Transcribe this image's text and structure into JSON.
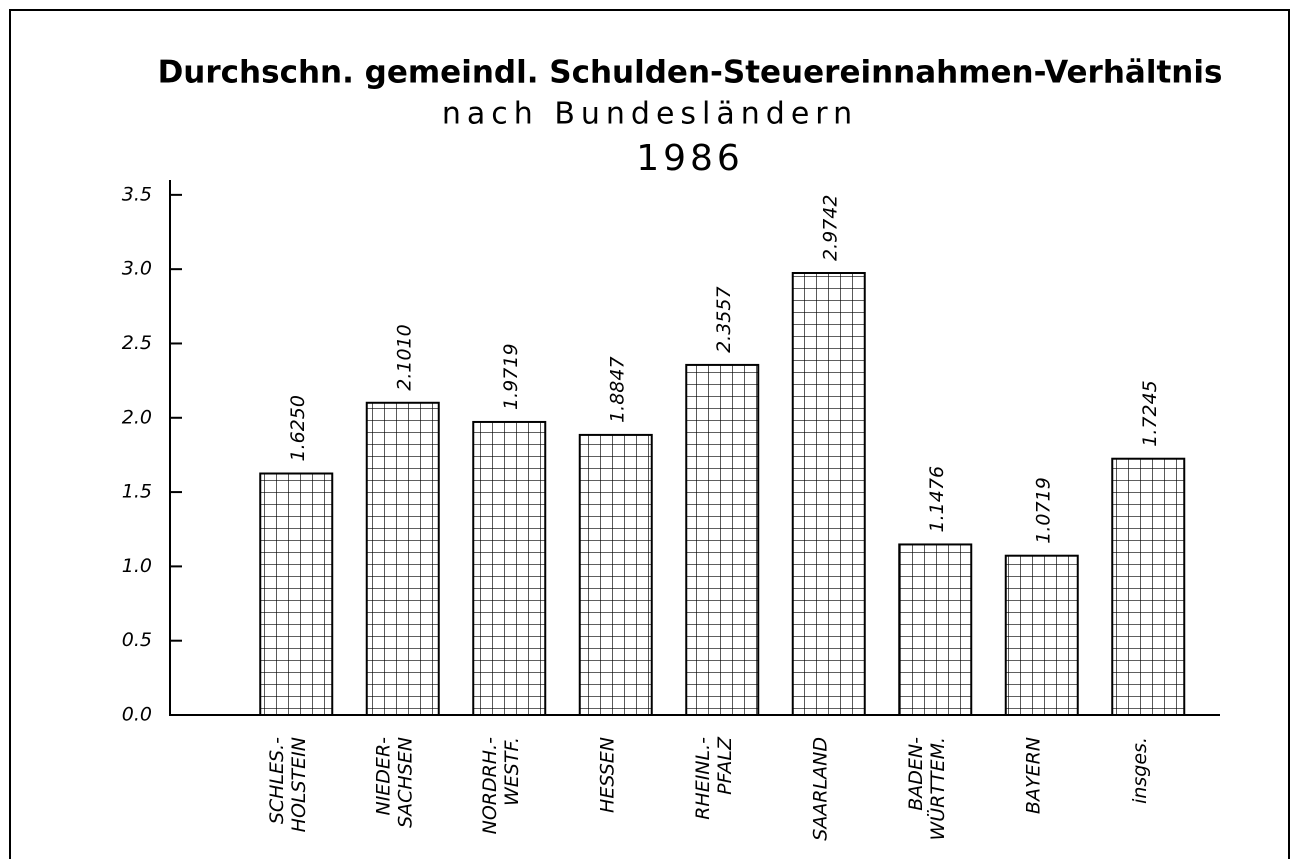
{
  "chart_data": {
    "type": "bar",
    "title": "Durchschn. gemeindl. Schulden-Steuereinnahmen-Verhältnis",
    "subtitle": "nach Bundesländern",
    "annotation": "1986",
    "categories": [
      [
        "SCHLES.-",
        "HOLSTEIN"
      ],
      [
        "NIEDER-",
        "SACHSEN"
      ],
      [
        "NORDRH.-",
        "WESTF."
      ],
      [
        "HESSEN"
      ],
      [
        "RHEINL.-",
        "PFALZ"
      ],
      [
        "SAARLAND"
      ],
      [
        "BADEN-",
        "WÜRTTEM."
      ],
      [
        "BAYERN"
      ],
      [
        "insges."
      ]
    ],
    "values": [
      1.625,
      2.101,
      1.9719,
      1.8847,
      2.3557,
      2.9742,
      1.1476,
      1.0719,
      1.7245
    ],
    "value_labels": [
      "1.6250",
      "2.1010",
      "1.9719",
      "1.8847",
      "2.3557",
      "2.9742",
      "1.1476",
      "1.0719",
      "1.7245"
    ],
    "color": "#000000",
    "ylim": [
      0,
      3.6
    ],
    "yticks": [
      {
        "value": 0,
        "label": "0.0"
      },
      0.5,
      {
        "value": 1,
        "label": "1.0"
      },
      1.5,
      {
        "value": 2,
        "label": "2.0"
      },
      2.5,
      {
        "value": 3,
        "label": "3.0"
      },
      3.5
    ],
    "grid": false
  }
}
